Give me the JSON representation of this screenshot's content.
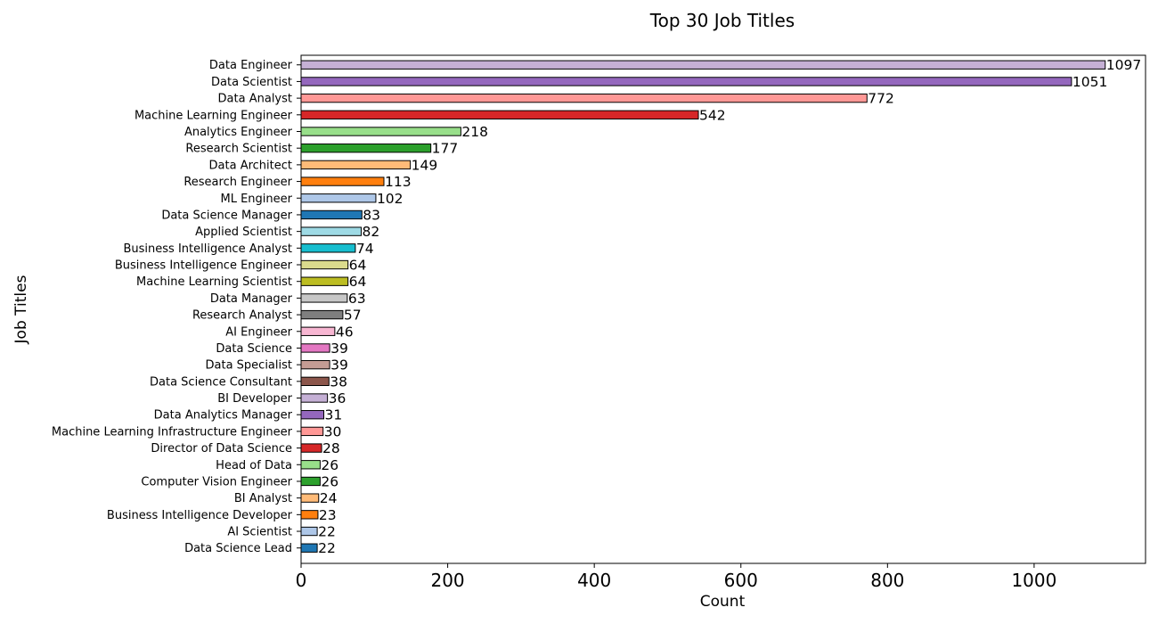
{
  "chart_data": {
    "type": "bar",
    "orientation": "horizontal",
    "title": "Top 30 Job Titles",
    "xlabel": "Count",
    "ylabel": "Job Titles",
    "xlim": [
      0,
      1152
    ],
    "xticks": [
      0,
      200,
      400,
      600,
      800,
      1000
    ],
    "grid": false,
    "legend": "none",
    "categories": [
      "Data Engineer",
      "Data Scientist",
      "Data Analyst",
      "Machine Learning Engineer",
      "Analytics Engineer",
      "Research Scientist",
      "Data Architect",
      "Research Engineer",
      "ML Engineer",
      "Data Science Manager",
      "Applied Scientist",
      "Business Intelligence Analyst",
      "Business Intelligence Engineer",
      "Machine Learning Scientist",
      "Data Manager",
      "Research Analyst",
      "AI Engineer",
      "Data Science",
      "Data Specialist",
      "Data Science Consultant",
      "BI Developer",
      "Data Analytics Manager",
      "Machine Learning Infrastructure Engineer",
      "Director of Data Science",
      "Head of Data",
      "Computer Vision Engineer",
      "BI Analyst",
      "Business Intelligence Developer",
      "AI Scientist",
      "Data Science Lead"
    ],
    "values": [
      1097,
      1051,
      772,
      542,
      218,
      177,
      149,
      113,
      102,
      83,
      82,
      74,
      64,
      64,
      63,
      57,
      46,
      39,
      39,
      38,
      36,
      31,
      30,
      28,
      26,
      26,
      24,
      23,
      22,
      22
    ],
    "value_labels": [
      "1097",
      "1051",
      "772",
      "542",
      "218",
      "177",
      "149",
      "113",
      "102",
      "83",
      "82",
      "74",
      "64",
      "64",
      "63",
      "57",
      "46",
      "39",
      "39",
      "38",
      "36",
      "31",
      "30",
      "28",
      "26",
      "26",
      "24",
      "23",
      "22",
      "22"
    ],
    "colors": [
      "#c5b0d5",
      "#9467bd",
      "#ff9896",
      "#d62728",
      "#98df8a",
      "#2ca02c",
      "#ffbb78",
      "#ff7f0e",
      "#aec7e8",
      "#1f77b4",
      "#9edae5",
      "#17becf",
      "#dbdb8d",
      "#bcbd22",
      "#c7c7c7",
      "#7f7f7f",
      "#f7b6d2",
      "#e377c2",
      "#c49c94",
      "#8c564b",
      "#c5b0d5",
      "#9467bd",
      "#ff9896",
      "#d62728",
      "#98df8a",
      "#2ca02c",
      "#ffbb78",
      "#ff7f0e",
      "#aec7e8",
      "#1f77b4"
    ],
    "bar_edge_color": "#000000"
  }
}
